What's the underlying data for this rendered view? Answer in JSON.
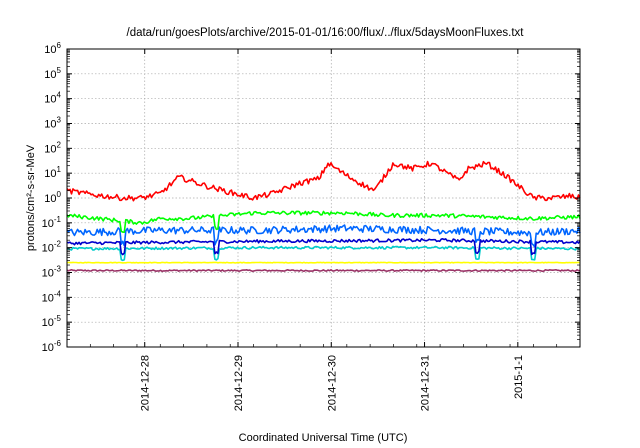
{
  "chart_data": {
    "type": "line",
    "title": "/data/run/goesPlots/archive/2015-01-01/16:00/flux/../flux/5daysMoonFluxes.txt",
    "xlabel": "Coordinated Universal Time (UTC)",
    "ylabel": "protons/cm²-s-sr-MeV",
    "yscale": "log",
    "ylim": [
      1e-06,
      1000000.0
    ],
    "xlim": [
      "2014-12-27 04:00",
      "2015-01-01 16:00"
    ],
    "grid": true,
    "legend": "none",
    "y_ticks": [
      {
        "base": "10",
        "exp": "-6"
      },
      {
        "base": "10",
        "exp": "-5"
      },
      {
        "base": "10",
        "exp": "-4"
      },
      {
        "base": "10",
        "exp": "-3"
      },
      {
        "base": "10",
        "exp": "-2"
      },
      {
        "base": "10",
        "exp": "-1"
      },
      {
        "base": "10",
        "exp": "0"
      },
      {
        "base": "10",
        "exp": "1"
      },
      {
        "base": "10",
        "exp": "2"
      },
      {
        "base": "10",
        "exp": "3"
      },
      {
        "base": "10",
        "exp": "4"
      },
      {
        "base": "10",
        "exp": "5"
      },
      {
        "base": "10",
        "exp": "6"
      }
    ],
    "x_ticks": [
      "2014-12-28",
      "2014-12-29",
      "2014-12-30",
      "2014-12-31",
      "2015-1-1"
    ],
    "series": [
      {
        "color": "#ff0000",
        "x": [
          0,
          0.2,
          0.4,
          0.6,
          0.8,
          1.0,
          1.2,
          1.5,
          1.8,
          2.0,
          2.2,
          2.5,
          2.7,
          2.8,
          3.0,
          3.2,
          3.3,
          3.5,
          3.7,
          3.9,
          4.0,
          4.2,
          4.3,
          4.5,
          4.7,
          4.9,
          5.0,
          5.2,
          5.4,
          5.5,
          5.6
        ],
        "y": [
          2,
          1.5,
          1.2,
          1.0,
          1.0,
          1.5,
          7,
          3,
          1.5,
          1.0,
          1.5,
          4,
          6,
          25,
          8,
          3,
          2,
          25,
          15,
          25,
          15,
          5,
          15,
          25,
          8,
          2,
          1.0,
          1.0,
          1.2,
          1.0,
          5
        ],
        "noise": 0.22,
        "dips": []
      },
      {
        "color": "#00ff00",
        "x": [
          0,
          0.8,
          1.0,
          1.3,
          2.0,
          3.0,
          3.4,
          4.0,
          5.0,
          5.6
        ],
        "y": [
          0.2,
          0.1,
          0.15,
          0.15,
          0.25,
          0.25,
          0.2,
          0.2,
          0.15,
          0.18
        ],
        "noise": 0.16,
        "dips": [
          0.6,
          1.6
        ]
      },
      {
        "color": "#0066ff",
        "x": [
          0,
          1.0,
          2.0,
          3.0,
          4.0,
          5.0,
          5.6
        ],
        "y": [
          0.04,
          0.05,
          0.05,
          0.06,
          0.05,
          0.04,
          0.05
        ],
        "noise": 0.3,
        "dips": [
          0.6,
          1.6,
          4.4,
          5.0
        ]
      },
      {
        "color": "#00cccc",
        "x": [
          0,
          2.0,
          4.0,
          5.6
        ],
        "y": [
          0.009,
          0.01,
          0.01,
          0.009
        ],
        "noise": 0.1,
        "dips": [
          0.6,
          1.6,
          4.4,
          5.0
        ]
      },
      {
        "color": "#0000cc",
        "x": [
          0,
          2.0,
          4.0,
          5.6
        ],
        "y": [
          0.015,
          0.018,
          0.02,
          0.016
        ],
        "noise": 0.12,
        "dips": [
          0.6,
          1.6,
          4.4,
          5.0
        ]
      },
      {
        "color": "#ffff00",
        "x": [
          0,
          2.0,
          4.0,
          5.6
        ],
        "y": [
          0.0025,
          0.0025,
          0.0025,
          0.0025
        ],
        "noise": 0.02,
        "dips": []
      },
      {
        "color": "#993366",
        "x": [
          0,
          2.0,
          4.0,
          5.6
        ],
        "y": [
          0.0012,
          0.0012,
          0.0012,
          0.0012
        ],
        "noise": 0.06,
        "dips": []
      }
    ]
  }
}
